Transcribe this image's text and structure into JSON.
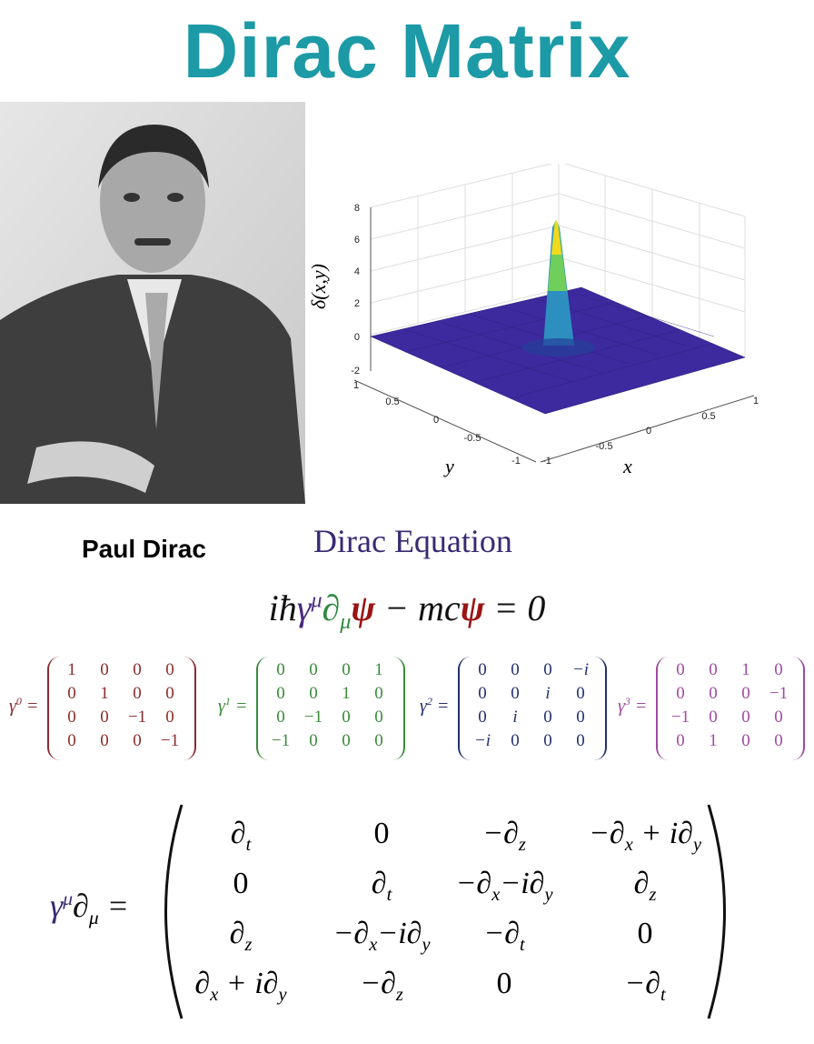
{
  "title": "Dirac Matrix",
  "photo_caption": "Paul Dirac",
  "plot": {
    "z_label": "δ(x,y)",
    "x_label": "x",
    "y_label": "y",
    "z_ticks": [
      "8",
      "6",
      "4",
      "2",
      "0",
      "-2"
    ],
    "y_ticks": [
      "1",
      "0.5",
      "0",
      "-0.5",
      "-1"
    ],
    "x_ticks": [
      "-1",
      "-0.5",
      "0",
      "0.5",
      "1"
    ]
  },
  "equation": {
    "heading": "Dirac Equation",
    "parts": [
      {
        "t": "iħγ"
      },
      {
        "sup": "μ"
      },
      {
        "t": "∂"
      },
      {
        "sub": "μ"
      },
      {
        "t": "ψ"
      },
      {
        "t": " − mc"
      },
      {
        "t": "ψ"
      },
      {
        "t": " = 0"
      }
    ]
  },
  "gammas": [
    {
      "symbol": "γ",
      "index": "0",
      "rows": [
        [
          "1",
          "0",
          "0",
          "0"
        ],
        [
          "0",
          "1",
          "0",
          "0"
        ],
        [
          "0",
          "0",
          "−1",
          "0"
        ],
        [
          "0",
          "0",
          "0",
          "−1"
        ]
      ]
    },
    {
      "symbol": "γ",
      "index": "1",
      "rows": [
        [
          "0",
          "0",
          "0",
          "1"
        ],
        [
          "0",
          "0",
          "1",
          "0"
        ],
        [
          "0",
          "−1",
          "0",
          "0"
        ],
        [
          "−1",
          "0",
          "0",
          "0"
        ]
      ]
    },
    {
      "symbol": "γ",
      "index": "2",
      "rows": [
        [
          "0",
          "0",
          "0",
          "−i"
        ],
        [
          "0",
          "0",
          "i",
          "0"
        ],
        [
          "0",
          "i",
          "0",
          "0"
        ],
        [
          "−i",
          "0",
          "0",
          "0"
        ]
      ]
    },
    {
      "symbol": "γ",
      "index": "3",
      "rows": [
        [
          "0",
          "0",
          "1",
          "0"
        ],
        [
          "0",
          "0",
          "0",
          "−1"
        ],
        [
          "−1",
          "0",
          "0",
          "0"
        ],
        [
          "0",
          "1",
          "0",
          "0"
        ]
      ]
    }
  ],
  "operator": {
    "label": [
      {
        "t": "γ",
        "sup": "μ"
      },
      {
        "t": "∂",
        "sub": "μ"
      },
      {
        "t": " ="
      }
    ],
    "rows": [
      [
        [
          {
            "t": "∂",
            "sub": "t"
          }
        ],
        [
          {
            "t": "0"
          }
        ],
        [
          {
            "t": "−∂",
            "sub": "z"
          }
        ],
        [
          {
            "t": "−∂",
            "sub": "x"
          },
          {
            "t": " + i∂",
            "sub": "y"
          }
        ]
      ],
      [
        [
          {
            "t": "0"
          }
        ],
        [
          {
            "t": "∂",
            "sub": "t"
          }
        ],
        [
          {
            "t": "−∂",
            "sub": "x"
          },
          {
            "t": "−i∂",
            "sub": "y"
          }
        ],
        [
          {
            "t": "∂",
            "sub": "z"
          }
        ]
      ],
      [
        [
          {
            "t": "∂",
            "sub": "z"
          }
        ],
        [
          {
            "t": "−∂",
            "sub": "x"
          },
          {
            "t": "−i∂",
            "sub": "y"
          }
        ],
        [
          {
            "t": "−∂",
            "sub": "t"
          }
        ],
        [
          {
            "t": "0"
          }
        ]
      ],
      [
        [
          {
            "t": "∂",
            "sub": "x"
          },
          {
            "t": " + i∂",
            "sub": "y"
          }
        ],
        [
          {
            "t": "−∂",
            "sub": "z"
          }
        ],
        [
          {
            "t": "0"
          }
        ],
        [
          {
            "t": "−∂",
            "sub": "t"
          }
        ]
      ]
    ]
  }
}
